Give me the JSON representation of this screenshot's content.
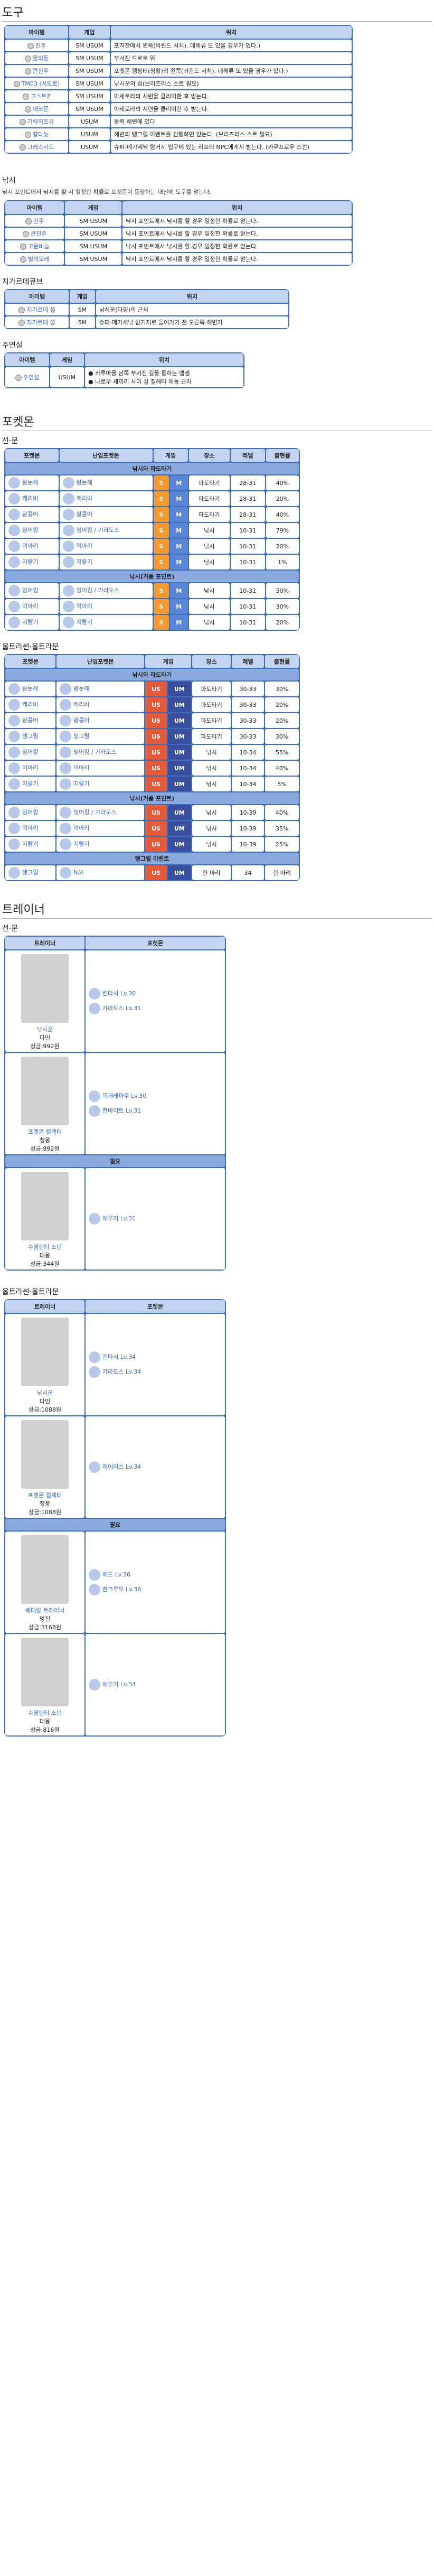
{
  "items": {
    "title": "도구",
    "headers": [
      "아이템",
      "게임",
      "위치"
    ],
    "rows": [
      [
        "진주",
        "SM USUM",
        "포지잔에서 왼쪽(바윈드 서치). 대해류 또 있을 경우가 있다.)"
      ],
      [
        "물의돌",
        "SM USUM",
        "부서진 드로로 위"
      ],
      [
        "큰진주",
        "SM USUM",
        "포켓몬 캠핑터(청황)의 왼쪽(바윈드 서치). 대해류 또 있을 경우가 있다.)"
      ],
      [
        "TM03 (서도로)",
        "SM USUM",
        "낚시꾼의 섬(브리즈리스 스트 필요)"
      ],
      [
        "고스트Z",
        "SM USUM",
        "아세로라의 시련을 클리어한 후 받는다."
      ],
      [
        "대크몬",
        "SM USUM",
        "아세로라의 시련을 클리어한 후 받는다."
      ],
      [
        "기력의조각",
        "USUM",
        "동쪽 해변에 있다."
      ],
      [
        "황다늦",
        "USUM",
        "해변의 탱그릴 이벤트를 진행하면 받는다. (브리즈리스 스트 필요)"
      ],
      [
        "그래스시드",
        "USUM",
        "슈퍼-메가세낚 탐거지 입구에 있는 리포터 NPC에게서 받는다. (카무프로우 스킨)"
      ]
    ]
  },
  "fishing": {
    "title": "낚시",
    "note": "낚시 포인트에서 낚시를 할 시 일정한 확률로 포켓몬이 등장하는 대신에 도구를 얻는다.",
    "headers": [
      "아이템",
      "게임",
      "위치"
    ],
    "rows": [
      [
        "진주",
        "SM USUM",
        "낚시 포인트에서 낚시를 할 경우 일정한 확률로 얻는다."
      ],
      [
        "큰진주",
        "SM USUM",
        "낚시 포인트에서 낚시를 할 경우 일정한 확률로 얻는다."
      ],
      [
        "고운비늘",
        "SM USUM",
        "낚시 포인트에서 낚시를 할 경우 일정한 확률로 얻는다."
      ],
      [
        "별의모래",
        "SM USUM",
        "낚시 포인트에서 낚시를 할 경우 일정한 확률로 얻는다."
      ]
    ]
  },
  "zcrystal": {
    "title": "지가르데큐브",
    "headers": [
      "아이템",
      "게임",
      "위치"
    ],
    "rows": [
      [
        "지가르데 셀",
        "SM",
        "낚시꾼(다잉)의 근처"
      ],
      [
        "지가르데 셀",
        "SM",
        "슈퍼-메가세낚 탐거지로 들어가기 전 오른쪽 해변가"
      ]
    ]
  },
  "deco": {
    "title": "주연실",
    "headers": [
      "아이템",
      "게임",
      "위치"
    ],
    "rows": [
      [
        "주연설",
        "USUM",
        "● 카루마을 남쪽 부서진 길을 통하는 앱셈\n● 나로우 세끼리 사이 길 칠해타 해동 근처"
      ]
    ]
  },
  "pokemon": {
    "title": "포켓몬",
    "sm": {
      "title": "선·문",
      "headers": [
        "포켓몬",
        "난입포켓몬",
        "게임",
        "장소",
        "레벨",
        "출현률"
      ],
      "sec1": "낚시와 파도타기",
      "rows1": [
        [
          "왕눈해",
          "왕눈해",
          "S",
          "M",
          "파도타기",
          "28-31",
          "40%"
        ],
        [
          "캐리비",
          "캐리비",
          "S",
          "M",
          "파도타기",
          "28-31",
          "20%"
        ],
        [
          "왕콩어",
          "왕콩어",
          "S",
          "M",
          "파도타기",
          "28-31",
          "40%"
        ],
        [
          "잉어킹",
          "잉어킹 / 갸라도스",
          "S",
          "M",
          "낚시",
          "10-31",
          "79%"
        ],
        [
          "덕아리",
          "덕아리",
          "S",
          "M",
          "낚시",
          "10-31",
          "20%"
        ],
        [
          "지랄기",
          "지랄기",
          "S",
          "M",
          "낚시",
          "10-31",
          "1%"
        ]
      ],
      "sec2": "낚시(거품 포인트)",
      "rows2": [
        [
          "잉어킹",
          "잉어킹 / 갸라도스",
          "S",
          "M",
          "낚시",
          "10-31",
          "50%"
        ],
        [
          "덕아리",
          "덕아리",
          "S",
          "M",
          "낚시",
          "10-31",
          "30%"
        ],
        [
          "지랄기",
          "지랄기",
          "S",
          "M",
          "낚시",
          "10-31",
          "20%"
        ]
      ]
    },
    "usum": {
      "title": "울트라썬·울트라문",
      "headers": [
        "포켓몬",
        "난입포켓몬",
        "게임",
        "장소",
        "레벨",
        "출현률"
      ],
      "sec1": "낚시와 파도타기",
      "rows1": [
        [
          "왕눈해",
          "왕눈해",
          "US",
          "UM",
          "파도타기",
          "30-33",
          "30%"
        ],
        [
          "캐리비",
          "캐리비",
          "US",
          "UM",
          "파도타기",
          "30-33",
          "20%"
        ],
        [
          "왕콩어",
          "왕콩어",
          "US",
          "UM",
          "파도타기",
          "30-33",
          "20%"
        ],
        [
          "탱그릴",
          "탱그릴",
          "US",
          "UM",
          "파도타기",
          "30-33",
          "30%"
        ],
        [
          "잉어킹",
          "잉어킹 / 갸라도스",
          "US",
          "UM",
          "낚시",
          "10-34",
          "55%"
        ],
        [
          "덕아리",
          "덕아리",
          "US",
          "UM",
          "낚시",
          "10-34",
          "40%"
        ],
        [
          "지랄기",
          "지랄기",
          "US",
          "UM",
          "낚시",
          "10-34",
          "5%"
        ]
      ],
      "sec2": "낚시(거품 포인트)",
      "rows2": [
        [
          "잉어킹",
          "잉어킹 / 갸라도스",
          "US",
          "UM",
          "낚시",
          "10-39",
          "40%"
        ],
        [
          "덕아리",
          "덕아리",
          "US",
          "UM",
          "낚시",
          "10-39",
          "35%"
        ],
        [
          "지랄기",
          "지랄기",
          "US",
          "UM",
          "낚시",
          "10-39",
          "25%"
        ]
      ],
      "sec3": "탱그릴 이벤트",
      "rows3": [
        [
          "탱그릴",
          "N/A",
          "US",
          "UM",
          "한 마리",
          "34",
          "한 마리"
        ]
      ]
    }
  },
  "trainers": {
    "title": "트레이너",
    "sm": {
      "title": "선·문",
      "headers": [
        "트레이너",
        "포켓몬"
      ],
      "list": [
        {
          "cls": "낚시꾼",
          "name": "다인",
          "prize": "상금:992원",
          "mons": [
            "킨타시 Lv.30",
            "갸라도스 Lv.31"
          ]
        },
        {
          "cls": "포켓몬 컬렉터",
          "name": "청웅",
          "prize": "상금:992원",
          "mons": [
            "독개래파주 Lv.30",
            "한바이트 Lv.31"
          ]
        },
        {
          "sep": "필요"
        },
        {
          "cls": "수영팬티 소년",
          "name": "대웅",
          "prize": "상금:344원",
          "mons": [
            "해무기 Lv.31"
          ]
        }
      ]
    },
    "usum": {
      "title": "울트라썬·울트라문",
      "headers": [
        "트레이너",
        "포켓몬"
      ],
      "list": [
        {
          "cls": "낚시꾼",
          "name": "다인",
          "prize": "상금:1088원",
          "mons": [
            "킨타시 Lv.34",
            "갸라도스 Lv.34"
          ]
        },
        {
          "cls": "포켓몬 컬렉터",
          "name": "청웅",
          "prize": "상금:1088원",
          "mons": [
            "레어리스 Lv.34"
          ]
        },
        {
          "sep": "필요"
        },
        {
          "cls": "베테랑 트레이너",
          "name": "엉진",
          "prize": "상금:3168원",
          "mons": [
            "헤드 Lv.36",
            "한크루우 Lv.36"
          ]
        },
        {
          "cls": "수영팬티 소년",
          "name": "대웅",
          "prize": "상금:816원",
          "mons": [
            "해무기 Lv.34"
          ]
        }
      ]
    }
  }
}
